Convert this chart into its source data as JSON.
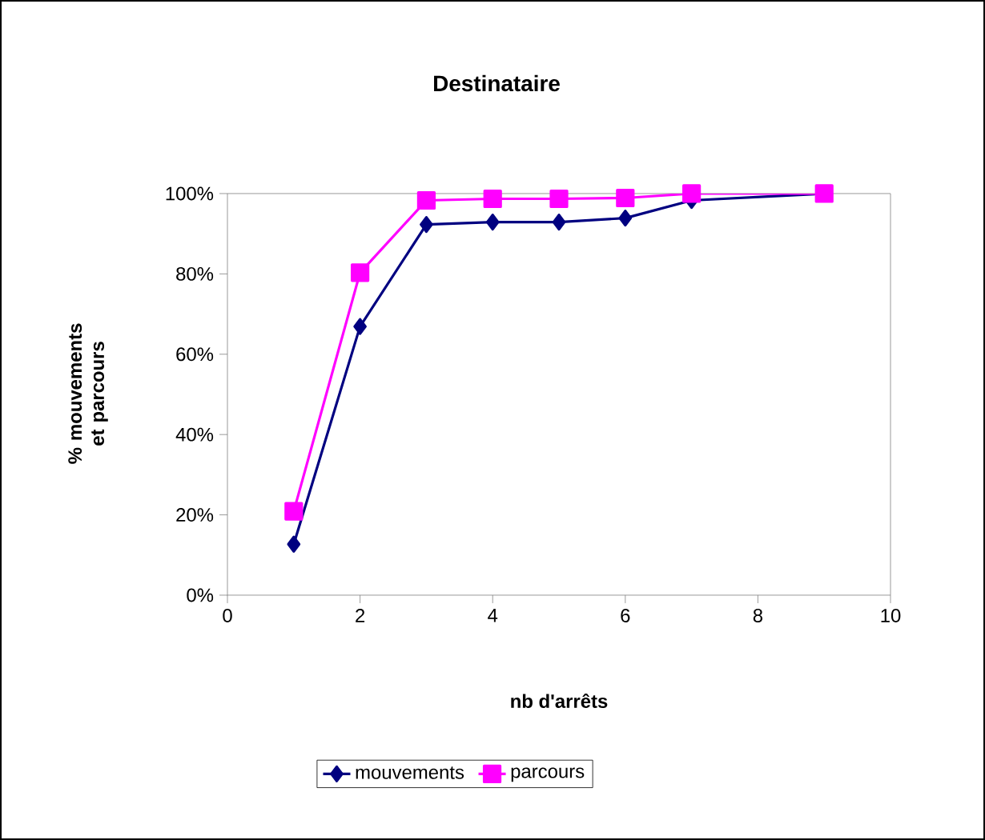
{
  "chart_data": {
    "type": "line",
    "title": "Destinataire",
    "xlabel": "nb d'arrêts",
    "ylabel": "% mouvements et parcours",
    "xlim": [
      0,
      10
    ],
    "xticks": [
      0,
      2,
      4,
      6,
      8,
      10
    ],
    "ylim": [
      0,
      100
    ],
    "yticks": [
      {
        "value": 0,
        "label": "0%"
      },
      {
        "value": 20,
        "label": "20%"
      },
      {
        "value": 40,
        "label": "40%"
      },
      {
        "value": 60,
        "label": "60%"
      },
      {
        "value": 80,
        "label": "80%"
      },
      {
        "value": 100,
        "label": "100%"
      }
    ],
    "x": [
      1,
      2,
      3,
      4,
      5,
      6,
      7,
      9
    ],
    "series": [
      {
        "name": "mouvements",
        "color": "#000080",
        "marker": "diamond",
        "values": [
          12.7,
          66.9,
          92.3,
          92.9,
          92.9,
          93.9,
          98.3,
          100
        ]
      },
      {
        "name": "parcours",
        "color": "#ff00ff",
        "marker": "square",
        "values": [
          20.9,
          80.3,
          98.3,
          98.7,
          98.7,
          98.9,
          100,
          100
        ]
      }
    ],
    "legend": "bottom",
    "grid": false,
    "line_style": "solid"
  }
}
